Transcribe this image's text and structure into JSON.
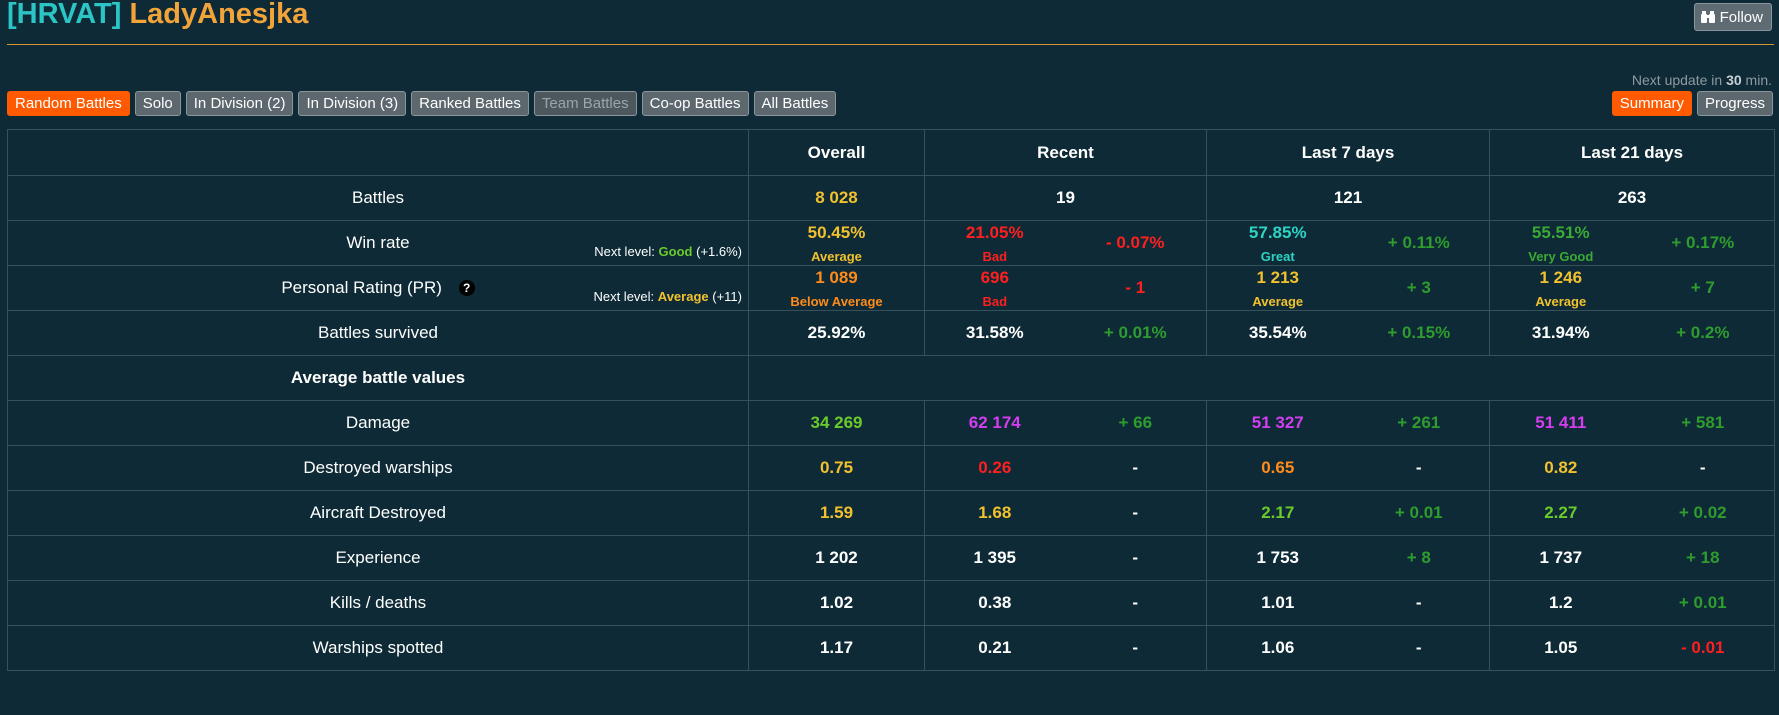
{
  "header": {
    "clan_tag": "[HRVAT]",
    "player_name": "LadyAnesjka",
    "follow_label": "Follow",
    "follow_icon": "binoculars-icon"
  },
  "update": {
    "prefix": "Next update in",
    "value": "30",
    "suffix": "min."
  },
  "battle_tabs": [
    {
      "label": "Random Battles",
      "state": "active"
    },
    {
      "label": "Solo",
      "state": "normal"
    },
    {
      "label": "In Division (2)",
      "state": "normal"
    },
    {
      "label": "In Division (3)",
      "state": "normal"
    },
    {
      "label": "Ranked Battles",
      "state": "normal"
    },
    {
      "label": "Team Battles",
      "state": "disabled"
    },
    {
      "label": "Co-op Battles",
      "state": "normal"
    },
    {
      "label": "All Battles",
      "state": "normal"
    }
  ],
  "view_tabs": [
    {
      "label": "Summary",
      "state": "active"
    },
    {
      "label": "Progress",
      "state": "normal"
    }
  ],
  "colors": {
    "background": "#0d2a36",
    "accent": "#ff5a00",
    "white": "#ffffff",
    "yellow": "#f2c12e",
    "orange": "#ff8c1a",
    "red": "#ff1f1f",
    "green": "#2e9c2e",
    "lime": "#6bcb2c",
    "teal": "#2ed3c3",
    "magenta": "#d43ef0",
    "olive_green": "#3aaa35"
  },
  "table": {
    "columns": [
      "",
      "Overall",
      "Recent",
      "Last 7 days",
      "Last 21 days"
    ],
    "battles": {
      "label": "Battles",
      "overall": "8 028",
      "recent": "19",
      "last7": "121",
      "last21": "263"
    },
    "win_rate": {
      "label": "Win rate",
      "next_level_prefix": "Next level:",
      "next_level_value": "Good",
      "next_level_delta": "(+1.6%)",
      "overall": {
        "value": "50.45%",
        "rating": "Average"
      },
      "recent": {
        "value": "21.05%",
        "rating": "Bad",
        "delta": "- 0.07%"
      },
      "last7": {
        "value": "57.85%",
        "rating": "Great",
        "delta": "+ 0.11%"
      },
      "last21": {
        "value": "55.51%",
        "rating": "Very Good",
        "delta": "+ 0.17%"
      }
    },
    "pr": {
      "label": "Personal Rating (PR)",
      "help_icon": "question-circle-icon",
      "help_glyph": "?",
      "next_level_prefix": "Next level:",
      "next_level_value": "Average",
      "next_level_delta": "(+11)",
      "overall": {
        "value": "1 089",
        "rating": "Below Average"
      },
      "recent": {
        "value": "696",
        "rating": "Bad",
        "delta": "- 1"
      },
      "last7": {
        "value": "1 213",
        "rating": "Average",
        "delta": "+ 3"
      },
      "last21": {
        "value": "1 246",
        "rating": "Average",
        "delta": "+ 7"
      }
    },
    "survived": {
      "label": "Battles survived",
      "overall": "25.92%",
      "recent": {
        "value": "31.58%",
        "delta": "+ 0.01%"
      },
      "last7": {
        "value": "35.54%",
        "delta": "+ 0.15%"
      },
      "last21": {
        "value": "31.94%",
        "delta": "+ 0.2%"
      }
    },
    "section_label": "Average battle values",
    "rows": [
      {
        "label": "Damage",
        "overall": {
          "value": "34 269",
          "color": "lime"
        },
        "recent": {
          "value": "62 174",
          "color": "magenta",
          "delta": "+ 66",
          "dcolor": "green"
        },
        "last7": {
          "value": "51 327",
          "color": "magenta",
          "delta": "+ 261",
          "dcolor": "green"
        },
        "last21": {
          "value": "51 411",
          "color": "magenta",
          "delta": "+ 581",
          "dcolor": "green"
        }
      },
      {
        "label": "Destroyed warships",
        "overall": {
          "value": "0.75",
          "color": "yellow"
        },
        "recent": {
          "value": "0.26",
          "color": "red",
          "delta": "-",
          "dcolor": "white"
        },
        "last7": {
          "value": "0.65",
          "color": "orange",
          "delta": "-",
          "dcolor": "white"
        },
        "last21": {
          "value": "0.82",
          "color": "yellow",
          "delta": "-",
          "dcolor": "white"
        }
      },
      {
        "label": "Aircraft Destroyed",
        "overall": {
          "value": "1.59",
          "color": "yellow"
        },
        "recent": {
          "value": "1.68",
          "color": "yellow",
          "delta": "-",
          "dcolor": "white"
        },
        "last7": {
          "value": "2.17",
          "color": "lime",
          "delta": "+ 0.01",
          "dcolor": "green"
        },
        "last21": {
          "value": "2.27",
          "color": "lime",
          "delta": "+ 0.02",
          "dcolor": "green"
        }
      },
      {
        "label": "Experience",
        "overall": {
          "value": "1 202",
          "color": "white"
        },
        "recent": {
          "value": "1 395",
          "color": "white",
          "delta": "-",
          "dcolor": "white"
        },
        "last7": {
          "value": "1 753",
          "color": "white",
          "delta": "+ 8",
          "dcolor": "green"
        },
        "last21": {
          "value": "1 737",
          "color": "white",
          "delta": "+ 18",
          "dcolor": "green"
        }
      },
      {
        "label": "Kills / deaths",
        "overall": {
          "value": "1.02",
          "color": "white"
        },
        "recent": {
          "value": "0.38",
          "color": "white",
          "delta": "-",
          "dcolor": "white"
        },
        "last7": {
          "value": "1.01",
          "color": "white",
          "delta": "-",
          "dcolor": "white"
        },
        "last21": {
          "value": "1.2",
          "color": "white",
          "delta": "+ 0.01",
          "dcolor": "green"
        }
      },
      {
        "label": "Warships spotted",
        "overall": {
          "value": "1.17",
          "color": "white"
        },
        "recent": {
          "value": "0.21",
          "color": "white",
          "delta": "-",
          "dcolor": "white"
        },
        "last7": {
          "value": "1.06",
          "color": "white",
          "delta": "-",
          "dcolor": "white"
        },
        "last21": {
          "value": "1.05",
          "color": "white",
          "delta": "- 0.01",
          "dcolor": "red"
        }
      }
    ]
  }
}
